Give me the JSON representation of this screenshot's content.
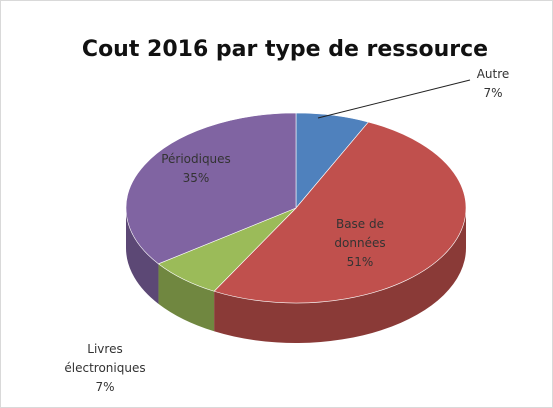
{
  "chart_data": {
    "type": "pie",
    "title": "Cout 2016 par type de ressource",
    "categories": [
      "Autre",
      "Base de données",
      "Livres électroniques",
      "Périodiques"
    ],
    "values": [
      7,
      51,
      7,
      35
    ],
    "value_labels": [
      "7%",
      "51%",
      "7%",
      "35%"
    ],
    "colors": [
      "#4f81bd",
      "#c0504d",
      "#9bbb59",
      "#8064a2"
    ]
  }
}
